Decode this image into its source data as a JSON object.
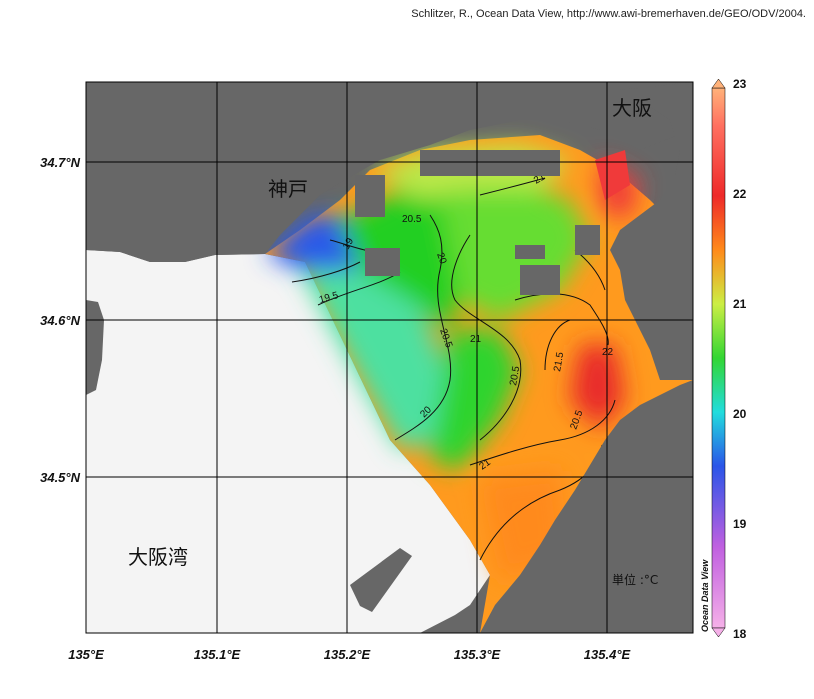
{
  "credit": "Schlitzer, R., Ocean Data View, http://www.awi-bremerhaven.de/GEO/ODV/2004.",
  "map": {
    "x_ticks": [
      "135°E",
      "135.1°E",
      "135.2°E",
      "135.3°E",
      "135.4°E"
    ],
    "y_ticks": [
      "34.7°N",
      "34.6°N",
      "34.5°N"
    ],
    "places": {
      "kobe": "神戸",
      "osaka": "大阪",
      "osaka_bay": "大阪湾"
    },
    "unit_label": "単位 :°C",
    "contour_labels": [
      "19",
      "19.5",
      "20",
      "20",
      "20.5",
      "20.5",
      "20.5",
      "21",
      "21",
      "21",
      "21",
      "21.5",
      "22",
      "20.5"
    ]
  },
  "colorbar": {
    "ticks": [
      "23",
      "22",
      "21",
      "20",
      "19",
      "18"
    ],
    "title": "Ocean Data View",
    "colors": {
      "23": "#ffb27a",
      "22": "#ee2a2a",
      "21": "#ccee44",
      "20": "#1ed21e",
      "19": "#1a55e8",
      "18": "#f2a4e2"
    }
  },
  "colors": {
    "land": "#676767",
    "sea_nodata": "#f4f4f4",
    "grid": "#000000"
  }
}
